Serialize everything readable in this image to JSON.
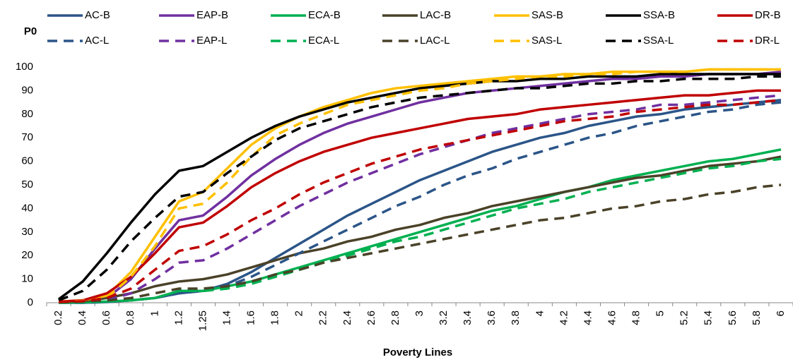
{
  "chart_data": {
    "type": "line",
    "y_title": "P0",
    "x_title": "Poverty Lines",
    "categories": [
      "0.2",
      "0.4",
      "0.6",
      "0.8",
      "1",
      "1.2",
      "1.25",
      "1.4",
      "1.6",
      "1.8",
      "2",
      "2.2",
      "2.4",
      "2.6",
      "2.8",
      "3",
      "3.2",
      "3.4",
      "3.6",
      "3.8",
      "4",
      "4.2",
      "4.4",
      "4.6",
      "4.8",
      "5",
      "5.2",
      "5.4",
      "5.6",
      "5.8",
      "6"
    ],
    "ylim": [
      0,
      100
    ],
    "yticks": [
      0,
      10,
      20,
      30,
      40,
      50,
      60,
      70,
      80,
      90,
      100
    ],
    "grid": false,
    "legend": "top",
    "series": [
      {
        "name": "AC-B",
        "color": "#2b5588",
        "dashed": false,
        "values": [
          0,
          0,
          0.3,
          1,
          2,
          4,
          5,
          8,
          13,
          19,
          25,
          31,
          37,
          42,
          47,
          52,
          56,
          60,
          64,
          67,
          70,
          72,
          75,
          77,
          79,
          80,
          82,
          83,
          84,
          85,
          86
        ]
      },
      {
        "name": "EAP-B",
        "color": "#7030a0",
        "dashed": false,
        "values": [
          0.5,
          0.7,
          2,
          10,
          23,
          35,
          37,
          45,
          54,
          61,
          67,
          72,
          76,
          79,
          82,
          85,
          87,
          89,
          90,
          91,
          92,
          93,
          94,
          95,
          95,
          96,
          96,
          97,
          97,
          97,
          98
        ]
      },
      {
        "name": "ECA-B",
        "color": "#00b050",
        "dashed": false,
        "values": [
          0,
          0.2,
          0.5,
          1,
          2,
          5,
          5,
          7,
          9,
          12,
          15,
          18,
          21,
          24,
          27,
          30,
          33,
          36,
          39,
          41,
          44,
          47,
          49,
          52,
          54,
          56,
          58,
          60,
          61,
          63,
          65
        ]
      },
      {
        "name": "LAC-B",
        "color": "#4a4228",
        "dashed": false,
        "values": [
          0.3,
          0.6,
          2,
          4,
          7,
          9,
          10,
          12,
          15,
          18,
          21,
          23,
          26,
          28,
          31,
          33,
          36,
          38,
          41,
          43,
          45,
          47,
          49,
          51,
          53,
          54,
          56,
          58,
          59,
          60,
          62
        ]
      },
      {
        "name": "SAS-B",
        "color": "#ffc000",
        "dashed": false,
        "values": [
          0.5,
          1,
          3,
          13,
          28,
          43,
          47,
          57,
          67,
          74,
          79,
          83,
          86,
          89,
          91,
          92,
          93,
          94,
          95,
          96,
          96,
          97,
          97,
          98,
          98,
          98,
          98,
          99,
          99,
          99,
          99
        ]
      },
      {
        "name": "SSA-B",
        "color": "#000000",
        "dashed": false,
        "values": [
          1.5,
          9,
          21,
          34,
          46,
          56,
          58,
          64,
          70,
          75,
          79,
          82,
          85,
          87,
          89,
          91,
          92,
          93,
          94,
          94,
          95,
          95,
          96,
          96,
          96,
          97,
          97,
          97,
          97,
          97,
          97
        ]
      },
      {
        "name": "DR-B",
        "color": "#c00000",
        "dashed": false,
        "values": [
          0.5,
          1,
          4,
          11,
          21,
          32,
          34,
          41,
          49,
          55,
          60,
          64,
          67,
          70,
          72,
          74,
          76,
          78,
          79,
          80,
          82,
          83,
          84,
          85,
          86,
          87,
          88,
          88,
          89,
          90,
          90
        ]
      },
      {
        "name": "AC-L",
        "color": "#2b5588",
        "dashed": true,
        "values": [
          0,
          0,
          0.3,
          1,
          2,
          4,
          5,
          7,
          11,
          16,
          21,
          26,
          31,
          36,
          41,
          45,
          50,
          54,
          57,
          61,
          64,
          67,
          70,
          72,
          75,
          77,
          79,
          81,
          82,
          84,
          85
        ]
      },
      {
        "name": "EAP-L",
        "color": "#7030a0",
        "dashed": true,
        "values": [
          0.3,
          0.5,
          1,
          4,
          10,
          17,
          18,
          23,
          29,
          35,
          41,
          46,
          51,
          55,
          59,
          63,
          66,
          69,
          72,
          74,
          76,
          78,
          80,
          81,
          82,
          84,
          84,
          85,
          86,
          87,
          88
        ]
      },
      {
        "name": "ECA-L",
        "color": "#00b050",
        "dashed": true,
        "values": [
          0,
          0.2,
          0.5,
          1,
          2,
          5,
          5,
          6,
          8,
          11,
          14,
          17,
          20,
          23,
          26,
          28,
          31,
          34,
          37,
          40,
          42,
          44,
          47,
          49,
          51,
          53,
          55,
          57,
          58,
          60,
          61
        ]
      },
      {
        "name": "LAC-L",
        "color": "#4a4228",
        "dashed": true,
        "values": [
          0.3,
          0.6,
          1,
          2,
          4,
          6,
          6,
          7,
          9,
          12,
          14,
          17,
          19,
          21,
          23,
          25,
          27,
          29,
          31,
          33,
          35,
          36,
          38,
          40,
          41,
          43,
          44,
          46,
          47,
          49,
          50
        ]
      },
      {
        "name": "SAS-L",
        "color": "#ffc000",
        "dashed": true,
        "values": [
          0.3,
          0.8,
          2,
          11,
          24,
          40,
          42,
          51,
          62,
          71,
          76,
          80,
          84,
          86,
          88,
          90,
          91,
          93,
          94,
          95,
          96,
          96,
          97,
          97,
          98,
          98,
          98,
          99,
          99,
          99,
          99
        ]
      },
      {
        "name": "SSA-L",
        "color": "#000000",
        "dashed": true,
        "values": [
          1,
          5,
          14,
          26,
          36,
          45,
          47,
          55,
          62,
          69,
          74,
          77,
          80,
          83,
          85,
          87,
          88,
          89,
          90,
          91,
          91,
          92,
          93,
          93,
          94,
          94,
          95,
          95,
          95,
          96,
          96
        ]
      },
      {
        "name": "DR-L",
        "color": "#c00000",
        "dashed": true,
        "values": [
          0.3,
          0.6,
          2,
          6,
          14,
          22,
          24,
          29,
          35,
          40,
          46,
          51,
          55,
          59,
          62,
          65,
          67,
          69,
          71,
          73,
          75,
          77,
          78,
          79,
          81,
          82,
          83,
          84,
          84,
          85,
          86
        ]
      }
    ]
  }
}
